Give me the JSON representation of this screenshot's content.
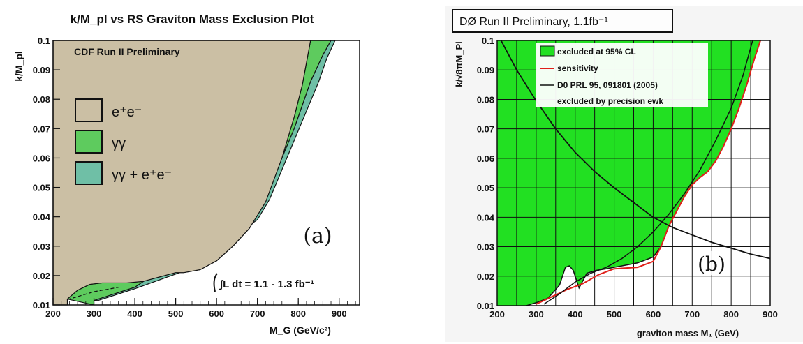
{
  "chart_data": [
    {
      "type": "area",
      "title": "k/M_pl vs RS Graviton Mass Exclusion Plot",
      "experiment": "CDF Run II Preliminary",
      "panel_label": "(a)",
      "xlabel": "M_G (GeV/c²)",
      "ylabel": "k/M_pl",
      "xlim": [
        200,
        950
      ],
      "ylim": [
        0.01,
        0.1
      ],
      "x_ticks": [
        "200",
        "300",
        "400",
        "500",
        "600",
        "700",
        "800",
        "900"
      ],
      "y_ticks": [
        "0.01",
        "0.02",
        "0.03",
        "0.04",
        "0.05",
        "0.06",
        "0.07",
        "0.08",
        "0.09",
        "0.1"
      ],
      "luminosity_text": "∫L dt = 1.1 - 1.3 fb⁻¹",
      "legend_position": "left",
      "colors": {
        "ee": "#cbbfa4",
        "gg": "#5ecb5e",
        "combined": "#6fbfa6"
      },
      "series": [
        {
          "name": "e⁺e⁻",
          "x": [
            235,
            260,
            290,
            320,
            350,
            380,
            420,
            460,
            500,
            520,
            560,
            600,
            640,
            680,
            720,
            760,
            790,
            810,
            830
          ],
          "y": [
            0.012,
            0.015,
            0.017,
            0.0175,
            0.0175,
            0.0175,
            0.018,
            0.0195,
            0.021,
            0.021,
            0.022,
            0.025,
            0.03,
            0.036,
            0.045,
            0.06,
            0.074,
            0.085,
            0.1
          ]
        },
        {
          "name": "γγ",
          "x": [
            300,
            400,
            480,
            500,
            520,
            540,
            600,
            650,
            700,
            730,
            760,
            790,
            810,
            830,
            860,
            880
          ],
          "y": [
            0.0115,
            0.016,
            0.0235,
            0.031,
            0.03,
            0.028,
            0.0325,
            0.037,
            0.043,
            0.05,
            0.06,
            0.07,
            0.078,
            0.086,
            0.095,
            0.1
          ]
        },
        {
          "name": "γγ + e⁺e⁻",
          "x": [
            310,
            400,
            480,
            520,
            560,
            600,
            650,
            700,
            730,
            760,
            790,
            820,
            850,
            870,
            890
          ],
          "y": [
            0.0115,
            0.0155,
            0.0195,
            0.0215,
            0.0245,
            0.029,
            0.034,
            0.039,
            0.046,
            0.056,
            0.066,
            0.076,
            0.086,
            0.094,
            0.1
          ]
        }
      ]
    },
    {
      "type": "area",
      "title": "DØ Run II Preliminary, 1.1fb⁻¹",
      "panel_label": "(b)",
      "xlabel": "graviton mass M₁ (GeV)",
      "ylabel": "k/√8πM_Pl",
      "xlim": [
        200,
        900
      ],
      "ylim": [
        0.01,
        0.1
      ],
      "x_ticks": [
        "200",
        "300",
        "400",
        "500",
        "600",
        "700",
        "800",
        "900"
      ],
      "y_ticks": [
        "0.01",
        "0.02",
        "0.03",
        "0.04",
        "0.05",
        "0.06",
        "0.07",
        "0.08",
        "0.09",
        "0.1"
      ],
      "grid": true,
      "legend_position": "top",
      "colors": {
        "excluded": "#22e022",
        "sensitivity": "#e0201a",
        "line": "#111111"
      },
      "legend": [
        "excluded at 95% CL",
        "sensitivity",
        "D0 PRL 95, 091801 (2005)",
        "excluded by precision ewk"
      ],
      "series": [
        {
          "name": "excluded at 95% CL",
          "x": [
            275,
            300,
            330,
            360,
            375,
            385,
            395,
            410,
            430,
            455,
            480,
            520,
            560,
            600,
            620,
            640,
            660,
            680,
            700,
            720,
            740,
            760,
            780,
            800,
            820,
            840,
            860,
            875
          ],
          "y": [
            0.01,
            0.011,
            0.0125,
            0.017,
            0.023,
            0.0235,
            0.022,
            0.016,
            0.021,
            0.022,
            0.0225,
            0.0235,
            0.0245,
            0.0265,
            0.03,
            0.037,
            0.042,
            0.047,
            0.051,
            0.0535,
            0.0555,
            0.059,
            0.064,
            0.07,
            0.077,
            0.085,
            0.094,
            0.1
          ]
        },
        {
          "name": "sensitivity",
          "x": [
            300,
            340,
            380,
            420,
            460,
            500,
            560,
            600,
            620,
            640,
            660,
            680,
            700,
            720,
            740,
            760,
            780,
            800,
            820,
            840,
            860,
            875
          ],
          "y": [
            0.0105,
            0.013,
            0.0155,
            0.0175,
            0.0205,
            0.0225,
            0.023,
            0.025,
            0.03,
            0.037,
            0.042,
            0.047,
            0.051,
            0.0535,
            0.0555,
            0.059,
            0.064,
            0.07,
            0.077,
            0.085,
            0.094,
            0.1
          ]
        },
        {
          "name": "D0 PRL 95, 091801 (2005)",
          "x": [
            320,
            360,
            400,
            440,
            480,
            520,
            560,
            600,
            640,
            680,
            720,
            760,
            800,
            830,
            855
          ],
          "y": [
            0.0105,
            0.014,
            0.018,
            0.021,
            0.023,
            0.026,
            0.03,
            0.035,
            0.041,
            0.048,
            0.056,
            0.066,
            0.077,
            0.088,
            0.1
          ]
        },
        {
          "name": "excluded by precision ewk",
          "x": [
            210,
            250,
            300,
            350,
            400,
            450,
            500,
            550,
            600,
            650,
            700,
            750,
            800,
            850,
            900
          ],
          "y": [
            0.1,
            0.09,
            0.0795,
            0.07,
            0.062,
            0.0555,
            0.05,
            0.045,
            0.04,
            0.0365,
            0.034,
            0.0315,
            0.0295,
            0.0275,
            0.026
          ]
        }
      ]
    }
  ]
}
